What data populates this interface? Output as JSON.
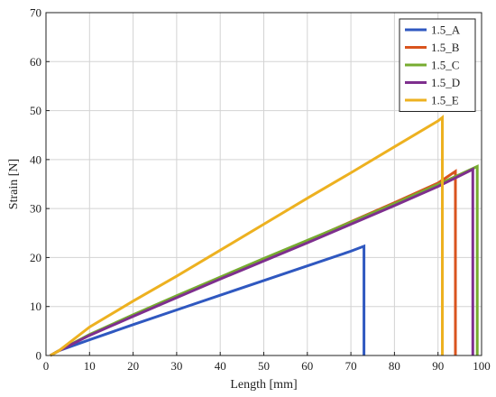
{
  "chart_data": {
    "type": "line",
    "title": "",
    "xlabel": "Length [mm]",
    "ylabel": "Strain [N]",
    "xlim": [
      0,
      100
    ],
    "ylim": [
      0,
      70
    ],
    "xticks": [
      0,
      10,
      20,
      30,
      40,
      50,
      60,
      70,
      80,
      90,
      100
    ],
    "yticks": [
      0,
      10,
      20,
      30,
      40,
      50,
      60,
      70
    ],
    "grid": true,
    "legend_position": "top-right",
    "series": [
      {
        "name": "1.5_A",
        "color": "#2f58c0",
        "points": [
          [
            1,
            0
          ],
          [
            3,
            1
          ],
          [
            10,
            3.2
          ],
          [
            20,
            6.3
          ],
          [
            30,
            9.3
          ],
          [
            40,
            12.3
          ],
          [
            50,
            15.3
          ],
          [
            60,
            18.3
          ],
          [
            70,
            21.3
          ],
          [
            73,
            22.3
          ],
          [
            73,
            0
          ]
        ]
      },
      {
        "name": "1.5_B",
        "color": "#d9541e",
        "points": [
          [
            1,
            0
          ],
          [
            3,
            1
          ],
          [
            10,
            4.2
          ],
          [
            20,
            8.1
          ],
          [
            30,
            12
          ],
          [
            40,
            15.8
          ],
          [
            50,
            19.6
          ],
          [
            60,
            23.4
          ],
          [
            70,
            27.3
          ],
          [
            80,
            31.2
          ],
          [
            90,
            35.2
          ],
          [
            94,
            37.6
          ],
          [
            94,
            0
          ]
        ]
      },
      {
        "name": "1.5_C",
        "color": "#77ac30",
        "points": [
          [
            1,
            0
          ],
          [
            3,
            1
          ],
          [
            10,
            4.3
          ],
          [
            20,
            8.3
          ],
          [
            30,
            12.2
          ],
          [
            40,
            16
          ],
          [
            50,
            19.8
          ],
          [
            60,
            23.5
          ],
          [
            70,
            27.2
          ],
          [
            80,
            31
          ],
          [
            90,
            34.9
          ],
          [
            99,
            38.6
          ],
          [
            99,
            0
          ]
        ]
      },
      {
        "name": "1.5_D",
        "color": "#7e2f8e",
        "points": [
          [
            1,
            0
          ],
          [
            3,
            1
          ],
          [
            10,
            4.1
          ],
          [
            20,
            8
          ],
          [
            30,
            11.8
          ],
          [
            40,
            15.6
          ],
          [
            50,
            19.3
          ],
          [
            60,
            23
          ],
          [
            70,
            26.8
          ],
          [
            80,
            30.6
          ],
          [
            90,
            34.5
          ],
          [
            98,
            38
          ],
          [
            98,
            0
          ]
        ]
      },
      {
        "name": "1.5_E",
        "color": "#edb120",
        "points": [
          [
            1,
            0
          ],
          [
            3,
            1
          ],
          [
            10,
            5.8
          ],
          [
            20,
            11.1
          ],
          [
            30,
            16.2
          ],
          [
            40,
            21.5
          ],
          [
            50,
            26.8
          ],
          [
            60,
            32.1
          ],
          [
            70,
            37.3
          ],
          [
            80,
            42.6
          ],
          [
            90,
            47.9
          ],
          [
            91,
            48.6
          ],
          [
            91,
            0
          ]
        ]
      }
    ]
  }
}
